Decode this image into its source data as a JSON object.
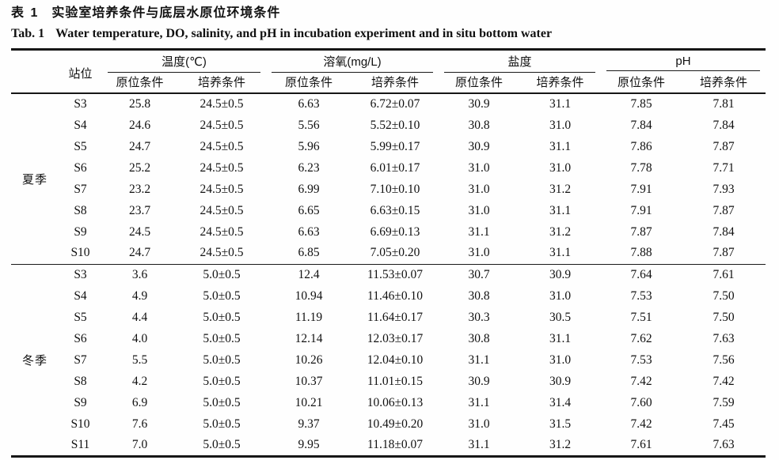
{
  "title": {
    "zh_label": "表 1",
    "zh_text": "实验室培养条件与底层水原位环境条件",
    "en_label": "Tab. 1",
    "en_text": "Water temperature, DO, salinity, and pH in incubation experiment and in situ bottom water"
  },
  "table": {
    "station_header": "站位",
    "groups": [
      {
        "label": "温度(℃)"
      },
      {
        "label": "溶氧(mg/L)"
      },
      {
        "label": "盐度"
      },
      {
        "label": "pH"
      }
    ],
    "sub_headers": [
      "原位条件",
      "培养条件"
    ],
    "sections": [
      {
        "season": "夏季",
        "rows": [
          {
            "station": "S3",
            "values": [
              "25.8",
              "24.5±0.5",
              "6.63",
              "6.72±0.07",
              "30.9",
              "31.1",
              "7.85",
              "7.81"
            ]
          },
          {
            "station": "S4",
            "values": [
              "24.6",
              "24.5±0.5",
              "5.56",
              "5.52±0.10",
              "30.8",
              "31.0",
              "7.84",
              "7.84"
            ]
          },
          {
            "station": "S5",
            "values": [
              "24.7",
              "24.5±0.5",
              "5.96",
              "5.99±0.17",
              "30.9",
              "31.1",
              "7.86",
              "7.87"
            ]
          },
          {
            "station": "S6",
            "values": [
              "25.2",
              "24.5±0.5",
              "6.23",
              "6.01±0.17",
              "31.0",
              "31.0",
              "7.78",
              "7.71"
            ]
          },
          {
            "station": "S7",
            "values": [
              "23.2",
              "24.5±0.5",
              "6.99",
              "7.10±0.10",
              "31.0",
              "31.2",
              "7.91",
              "7.93"
            ]
          },
          {
            "station": "S8",
            "values": [
              "23.7",
              "24.5±0.5",
              "6.65",
              "6.63±0.15",
              "31.0",
              "31.1",
              "7.91",
              "7.87"
            ]
          },
          {
            "station": "S9",
            "values": [
              "24.5",
              "24.5±0.5",
              "6.63",
              "6.69±0.13",
              "31.1",
              "31.2",
              "7.87",
              "7.84"
            ]
          },
          {
            "station": "S10",
            "values": [
              "24.7",
              "24.5±0.5",
              "6.85",
              "7.05±0.20",
              "31.0",
              "31.1",
              "7.88",
              "7.87"
            ]
          }
        ]
      },
      {
        "season": "冬季",
        "rows": [
          {
            "station": "S3",
            "values": [
              "3.6",
              "5.0±0.5",
              "12.4",
              "11.53±0.07",
              "30.7",
              "30.9",
              "7.64",
              "7.61"
            ]
          },
          {
            "station": "S4",
            "values": [
              "4.9",
              "5.0±0.5",
              "10.94",
              "11.46±0.10",
              "30.8",
              "31.0",
              "7.53",
              "7.50"
            ]
          },
          {
            "station": "S5",
            "values": [
              "4.4",
              "5.0±0.5",
              "11.19",
              "11.64±0.17",
              "30.3",
              "30.5",
              "7.51",
              "7.50"
            ]
          },
          {
            "station": "S6",
            "values": [
              "4.0",
              "5.0±0.5",
              "12.14",
              "12.03±0.17",
              "30.8",
              "31.1",
              "7.62",
              "7.63"
            ]
          },
          {
            "station": "S7",
            "values": [
              "5.5",
              "5.0±0.5",
              "10.26",
              "12.04±0.10",
              "31.1",
              "31.0",
              "7.53",
              "7.56"
            ]
          },
          {
            "station": "S8",
            "values": [
              "4.2",
              "5.0±0.5",
              "10.37",
              "11.01±0.15",
              "30.9",
              "30.9",
              "7.42",
              "7.42"
            ]
          },
          {
            "station": "S9",
            "values": [
              "6.9",
              "5.0±0.5",
              "10.21",
              "10.06±0.13",
              "31.1",
              "31.4",
              "7.60",
              "7.59"
            ]
          },
          {
            "station": "S10",
            "values": [
              "7.6",
              "5.0±0.5",
              "9.37",
              "10.49±0.20",
              "31.0",
              "31.5",
              "7.42",
              "7.45"
            ]
          },
          {
            "station": "S11",
            "values": [
              "7.0",
              "5.0±0.5",
              "9.95",
              "11.18±0.07",
              "31.1",
              "31.2",
              "7.61",
              "7.63"
            ]
          }
        ]
      }
    ]
  }
}
